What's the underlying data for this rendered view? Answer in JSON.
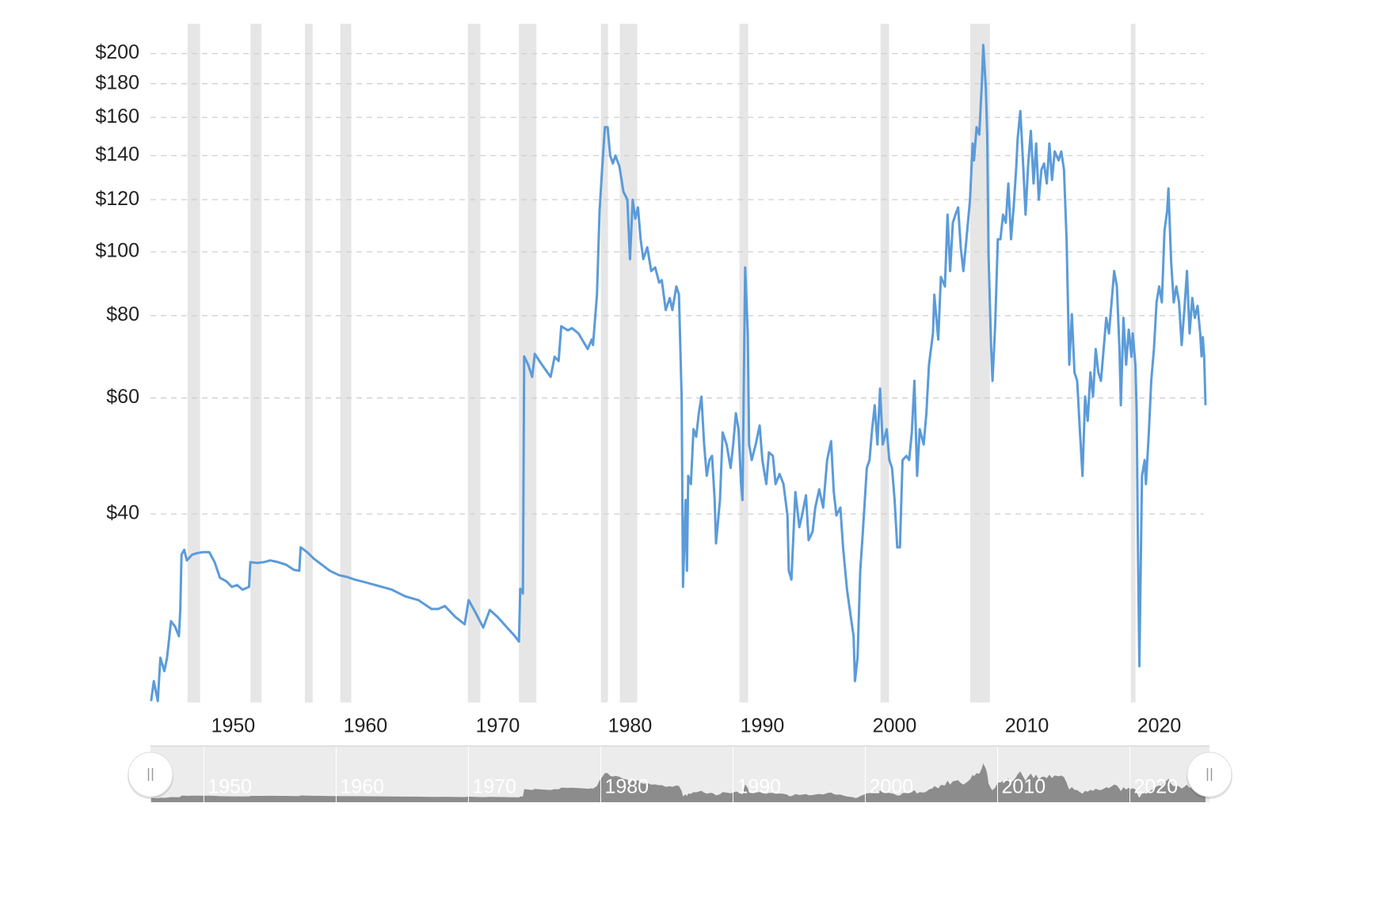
{
  "chart_data": {
    "type": "line",
    "log_y": true,
    "grid": true,
    "xlim": [
      1943.75,
      2023.8
    ],
    "ylim": [
      20.7,
      210
    ],
    "xticks": [
      1950,
      1960,
      1970,
      1980,
      1990,
      2000,
      2010,
      2020
    ],
    "yticks": [
      {
        "value": 40,
        "label": "$40"
      },
      {
        "value": 60,
        "label": "$60"
      },
      {
        "value": 80,
        "label": "$80"
      },
      {
        "value": 100,
        "label": "$100"
      },
      {
        "value": 120,
        "label": "$120"
      },
      {
        "value": 140,
        "label": "$140"
      },
      {
        "value": 160,
        "label": "$160"
      },
      {
        "value": 180,
        "label": "$180"
      },
      {
        "value": 200,
        "label": "$200"
      }
    ],
    "recession_color": "#e6e6e6",
    "recessions": [
      [
        1946.55,
        1947.5
      ],
      [
        1951.31,
        1952.14
      ],
      [
        1955.42,
        1956.01
      ],
      [
        1958.1,
        1958.93
      ],
      [
        1967.74,
        1968.69
      ],
      [
        1971.6,
        1972.92
      ],
      [
        1977.8,
        1978.33
      ],
      [
        1979.23,
        1980.54
      ],
      [
        1988.27,
        1988.93
      ],
      [
        1998.93,
        1999.58
      ],
      [
        2005.71,
        2007.2
      ],
      [
        2017.86,
        2018.21
      ]
    ],
    "x": [
      1943.8,
      1944.0,
      1944.3,
      1944.5,
      1944.8,
      1945.0,
      1945.3,
      1945.6,
      1945.9,
      1946.0,
      1946.1,
      1946.3,
      1946.5,
      1946.9,
      1947.3,
      1947.7,
      1948.2,
      1948.6,
      1949.0,
      1949.5,
      1949.9,
      1950.3,
      1950.7,
      1951.2,
      1951.3,
      1951.8,
      1952.3,
      1952.8,
      1953.4,
      1954.0,
      1954.6,
      1955.0,
      1955.1,
      1955.6,
      1956.1,
      1956.7,
      1957.3,
      1958.0,
      1958.6,
      1959.2,
      1960.0,
      1961.0,
      1962.0,
      1963.0,
      1964.0,
      1965.0,
      1965.5,
      1966.0,
      1966.8,
      1967.5,
      1967.8,
      1968.3,
      1968.9,
      1969.4,
      1970.0,
      1970.7,
      1971.3,
      1971.6,
      1971.7,
      1971.9,
      1972.0,
      1972.3,
      1972.6,
      1972.8,
      1973.3,
      1974.0,
      1974.3,
      1974.6,
      1974.8,
      1975.3,
      1975.6,
      1976.1,
      1976.8,
      1977.1,
      1977.2,
      1977.5,
      1977.7,
      1977.9,
      1978.1,
      1978.3,
      1978.5,
      1978.7,
      1978.9,
      1979.2,
      1979.5,
      1979.8,
      1979.9,
      1980.0,
      1980.2,
      1980.4,
      1980.6,
      1980.8,
      1981.0,
      1981.3,
      1981.6,
      1981.9,
      1982.2,
      1982.4,
      1982.7,
      1983.0,
      1983.2,
      1983.5,
      1983.7,
      1983.9,
      1984.0,
      1984.2,
      1984.3,
      1984.4,
      1984.6,
      1984.8,
      1985.0,
      1985.2,
      1985.4,
      1985.6,
      1985.8,
      1986.0,
      1986.2,
      1986.4,
      1986.5,
      1986.8,
      1987.0,
      1987.3,
      1987.6,
      1987.8,
      1988.0,
      1988.2,
      1988.4,
      1988.5,
      1988.7,
      1988.9,
      1989.0,
      1989.2,
      1989.5,
      1989.8,
      1990.0,
      1990.3,
      1990.5,
      1990.8,
      1991.0,
      1991.3,
      1991.6,
      1991.9,
      1992.0,
      1992.2,
      1992.5,
      1992.8,
      1993.0,
      1993.3,
      1993.5,
      1993.8,
      1994.0,
      1994.3,
      1994.6,
      1994.9,
      1995.2,
      1995.4,
      1995.6,
      1995.9,
      1996.1,
      1996.4,
      1996.7,
      1996.9,
      1997.0,
      1997.2,
      1997.4,
      1997.6,
      1997.9,
      1998.1,
      1998.3,
      1998.5,
      1998.7,
      1998.9,
      1999.1,
      1999.4,
      1999.6,
      1999.8,
      2000.0,
      2000.2,
      2000.4,
      2000.6,
      2000.9,
      2001.1,
      2001.3,
      2001.5,
      2001.7,
      2001.9,
      2002.2,
      2002.4,
      2002.6,
      2002.9,
      2003.0,
      2003.3,
      2003.5,
      2003.8,
      2004.0,
      2004.2,
      2004.4,
      2004.6,
      2004.8,
      2005.0,
      2005.2,
      2005.4,
      2005.7,
      2005.9,
      2006.0,
      2006.2,
      2006.4,
      2006.6,
      2006.7,
      2006.9,
      2007.0,
      2007.1,
      2007.3,
      2007.4,
      2007.6,
      2007.8,
      2008.0,
      2008.2,
      2008.4,
      2008.6,
      2008.8,
      2009.0,
      2009.2,
      2009.3,
      2009.5,
      2009.7,
      2009.9,
      2010.1,
      2010.3,
      2010.5,
      2010.7,
      2010.9,
      2011.1,
      2011.3,
      2011.5,
      2011.7,
      2011.9,
      2012.1,
      2012.4,
      2012.6,
      2012.8,
      2013.0,
      2013.1,
      2013.2,
      2013.4,
      2013.6,
      2013.8,
      2014.0,
      2014.2,
      2014.4,
      2014.6,
      2014.8,
      2015.0,
      2015.2,
      2015.4,
      2015.6,
      2015.8,
      2016.0,
      2016.2,
      2016.4,
      2016.6,
      2016.8,
      2017.0,
      2017.1,
      2017.3,
      2017.5,
      2017.7,
      2017.9,
      2018.0,
      2018.2,
      2018.3,
      2018.4,
      2018.5,
      2018.7,
      2018.9,
      2019.0,
      2019.2,
      2019.4,
      2019.6,
      2019.8,
      2020.0,
      2020.2,
      2020.4,
      2020.6,
      2020.7,
      2020.9,
      2021.1,
      2021.3,
      2021.5,
      2021.7,
      2021.9,
      2022.1,
      2022.3,
      2022.5,
      2022.7,
      2022.9,
      2023.1,
      2023.2,
      2023.3,
      2023.4,
      2023.5
    ],
    "series": [
      {
        "color": "#5b9bd9",
        "values": [
          20.8,
          22.3,
          20.8,
          24.2,
          23.1,
          24.2,
          27.5,
          27.0,
          26.1,
          28.6,
          34.7,
          35.3,
          34.0,
          34.7,
          34.9,
          35.0,
          35.0,
          33.8,
          32.0,
          31.6,
          31.0,
          31.2,
          30.7,
          31.0,
          33.8,
          33.7,
          33.8,
          34.0,
          33.8,
          33.5,
          32.9,
          32.8,
          35.6,
          35.0,
          34.2,
          33.5,
          32.8,
          32.3,
          32.1,
          31.8,
          31.5,
          31.1,
          30.7,
          30.0,
          29.6,
          28.7,
          28.7,
          29.0,
          27.9,
          27.2,
          29.6,
          28.4,
          26.9,
          28.6,
          27.9,
          26.9,
          26.1,
          25.6,
          30.8,
          30.3,
          69.4,
          67.4,
          64.6,
          70.0,
          67.6,
          64.6,
          69.3,
          68.3,
          77.1,
          76.0,
          76.6,
          75.2,
          71.2,
          73.6,
          72.2,
          86.1,
          115.5,
          134.7,
          154.6,
          154.6,
          140.0,
          136.2,
          140.0,
          134.7,
          123.4,
          120,
          107.6,
          97.5,
          120,
          112.3,
          116.8,
          104.5,
          97.5,
          101.6,
          93.5,
          94.7,
          89.8,
          90.6,
          81.6,
          85.1,
          81.6,
          88.6,
          86.1,
          60.1,
          31.0,
          42.0,
          32.8,
          45.7,
          44.4,
          53.8,
          52.4,
          56.9,
          60.3,
          51.0,
          45.7,
          48.3,
          49.0,
          42.0,
          36.1,
          42.0,
          53.2,
          51.0,
          47.0,
          51.0,
          56.9,
          53.8,
          44.4,
          42.0,
          94.7,
          75.2,
          51.0,
          48.3,
          51.0,
          54.5,
          48.3,
          44.4,
          49.6,
          49.0,
          44.4,
          46.0,
          44.4,
          39.8,
          32.8,
          31.8,
          43.2,
          38.2,
          39.8,
          42.7,
          36.5,
          37.6,
          40.9,
          43.6,
          40.9,
          48.3,
          51.6,
          43.2,
          39.8,
          40.9,
          35.6,
          30.7,
          27.8,
          26.1,
          22.3,
          24.2,
          32.8,
          37.6,
          47.0,
          48.3,
          53.8,
          58.5,
          51.0,
          62.0,
          51.0,
          53.8,
          48.3,
          47.0,
          42.0,
          35.6,
          35.6,
          48.3,
          49.0,
          48.3,
          53.2,
          63.7,
          45.7,
          53.8,
          51.0,
          56.9,
          67.4,
          75.2,
          86.1,
          73.6,
          91.6,
          88.6,
          113.9,
          93.5,
          110.7,
          113.9,
          116.8,
          101.6,
          93.5,
          103.1,
          120,
          146,
          137.7,
          154.6,
          150.7,
          181,
          206,
          177,
          150.7,
          98.9,
          71.2,
          63.7,
          77.1,
          104.5,
          104.5,
          113.9,
          110.7,
          127.0,
          104.5,
          116.8,
          134.7,
          148.4,
          163.6,
          137.7,
          113.9,
          136.2,
          152.6,
          127.0,
          146,
          120,
          133.3,
          136.2,
          127.0,
          146,
          128.6,
          142.0,
          137.7,
          142.0,
          133.3,
          104.5,
          83.8,
          67.4,
          80.4,
          65.6,
          63.7,
          53.8,
          45.7,
          60.3,
          55.4,
          65.6,
          60.3,
          71.2,
          65.6,
          63.7,
          71.2,
          79.4,
          75.2,
          83.8,
          93.5,
          88.6,
          71.2,
          58.5,
          79.4,
          67.4,
          76.2,
          69.3,
          75.2,
          67.4,
          56.9,
          34.7,
          23.5,
          45.7,
          48.3,
          44.4,
          52.4,
          63.7,
          71.2,
          83.8,
          88.6,
          83.8,
          107.6,
          115.5,
          124.8,
          96.7,
          83.8,
          88.6,
          83.8,
          72.2,
          81.6,
          93.5,
          75.2,
          85.1,
          79.4,
          82.8,
          75.2,
          69.4,
          74.2,
          69.3,
          58.5
        ]
      }
    ],
    "navigator": {
      "background": "#ececec",
      "area_color": "#8c8c8c"
    }
  }
}
